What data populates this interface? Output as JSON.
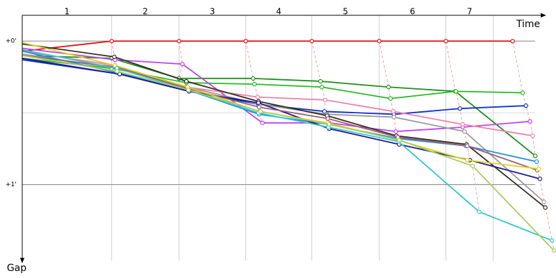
{
  "chart_data": {
    "type": "line",
    "x_label": "Time",
    "y_label": "Gap",
    "xlim": [
      0,
      8
    ],
    "ylim": [
      -0.18,
      1.53
    ],
    "xticks": [
      1.34,
      2.35,
      3.35,
      4.34,
      5.35,
      6.35,
      7.06
    ],
    "lap_labels": [
      "1",
      "2",
      "3",
      "4",
      "5",
      "6",
      "7"
    ],
    "yticks": [
      {
        "value": 0,
        "label": "+0'"
      },
      {
        "value": 1,
        "label": "+1'"
      }
    ],
    "minor_grid": [
      0.5
    ],
    "series": [
      {
        "color": "#e01010",
        "x": [
          0,
          1.34,
          2.35,
          3.35,
          4.34,
          5.35,
          6.35,
          7.35
        ],
        "values": [
          0.07,
          0,
          0,
          0,
          0,
          0,
          0,
          0
        ]
      },
      {
        "color": "#1f8f1f",
        "x": [
          0,
          1.34,
          2.35,
          3.46,
          4.47,
          5.49,
          6.49,
          7.69
        ],
        "values": [
          0.1,
          0.12,
          0.26,
          0.26,
          0.28,
          0.32,
          0.35,
          0.8
        ]
      },
      {
        "color": "#22bb22",
        "x": [
          0,
          1.34,
          2.46,
          3.48,
          4.49,
          5.52,
          6.5,
          7.5
        ],
        "values": [
          0.12,
          0.19,
          0.29,
          0.3,
          0.32,
          0.4,
          0.35,
          0.36
        ]
      },
      {
        "color": "#1030d0",
        "x": [
          0,
          1.46,
          2.5,
          3.54,
          4.53,
          5.57,
          6.56,
          7.55
        ],
        "values": [
          0.13,
          0.23,
          0.35,
          0.44,
          0.49,
          0.51,
          0.47,
          0.45
        ]
      },
      {
        "color": "#c040f0",
        "x": [
          0,
          1.39,
          2.4,
          3.6,
          4.6,
          5.6,
          6.6,
          7.61
        ],
        "values": [
          0.05,
          0.13,
          0.16,
          0.57,
          0.57,
          0.63,
          0.6,
          0.56
        ]
      },
      {
        "color": "#f080a8",
        "x": [
          0,
          1.39,
          2.46,
          3.53,
          4.54,
          5.56,
          6.6,
          7.65
        ],
        "values": [
          0.07,
          0.17,
          0.32,
          0.39,
          0.41,
          0.49,
          0.58,
          0.66
        ]
      },
      {
        "color": "#9a9a9a",
        "x": [
          0,
          1.41,
          2.48,
          3.56,
          4.57,
          5.57,
          6.63,
          7.82
        ],
        "values": [
          0.09,
          0.19,
          0.32,
          0.44,
          0.51,
          0.53,
          0.63,
          1.12
        ]
      },
      {
        "color": "#303020",
        "x": [
          0,
          1.38,
          2.46,
          3.54,
          4.57,
          5.61,
          6.66,
          7.84
        ],
        "values": [
          0.02,
          0.11,
          0.28,
          0.42,
          0.52,
          0.66,
          0.72,
          1.16
        ]
      },
      {
        "color": "#2090e0",
        "x": [
          0,
          1.42,
          2.48,
          3.55,
          4.59,
          5.64,
          6.65,
          7.71
        ],
        "values": [
          0.07,
          0.22,
          0.34,
          0.51,
          0.58,
          0.68,
          0.73,
          0.84
        ]
      },
      {
        "color": "#201890",
        "x": [
          0,
          1.46,
          2.5,
          3.54,
          4.6,
          5.65,
          6.71,
          7.76
        ],
        "values": [
          0.12,
          0.23,
          0.35,
          0.43,
          0.61,
          0.72,
          0.83,
          0.96
        ]
      },
      {
        "color": "#a05a70",
        "x": [
          0,
          1.4,
          2.48,
          3.55,
          4.58,
          5.63,
          6.67,
          7.72
        ],
        "values": [
          0.1,
          0.18,
          0.33,
          0.46,
          0.54,
          0.67,
          0.73,
          0.9
        ]
      },
      {
        "color": "#e0d020",
        "x": [
          0,
          1.39,
          2.48,
          3.55,
          4.58,
          5.63,
          6.67,
          7.74
        ],
        "values": [
          0.01,
          0.17,
          0.32,
          0.49,
          0.57,
          0.69,
          0.83,
          0.89
        ]
      },
      {
        "color": "#30c8c8",
        "x": [
          0,
          1.42,
          2.49,
          3.54,
          4.59,
          5.64,
          6.85,
          7.94
        ],
        "values": [
          0.06,
          0.19,
          0.34,
          0.5,
          0.6,
          0.7,
          1.19,
          1.39
        ]
      },
      {
        "color": "#a8cc60",
        "x": [
          0,
          1.42,
          2.49,
          3.57,
          4.6,
          5.65,
          6.75,
          7.97
        ],
        "values": [
          0.1,
          0.21,
          0.34,
          0.49,
          0.58,
          0.69,
          0.87,
          1.46
        ]
      }
    ]
  }
}
